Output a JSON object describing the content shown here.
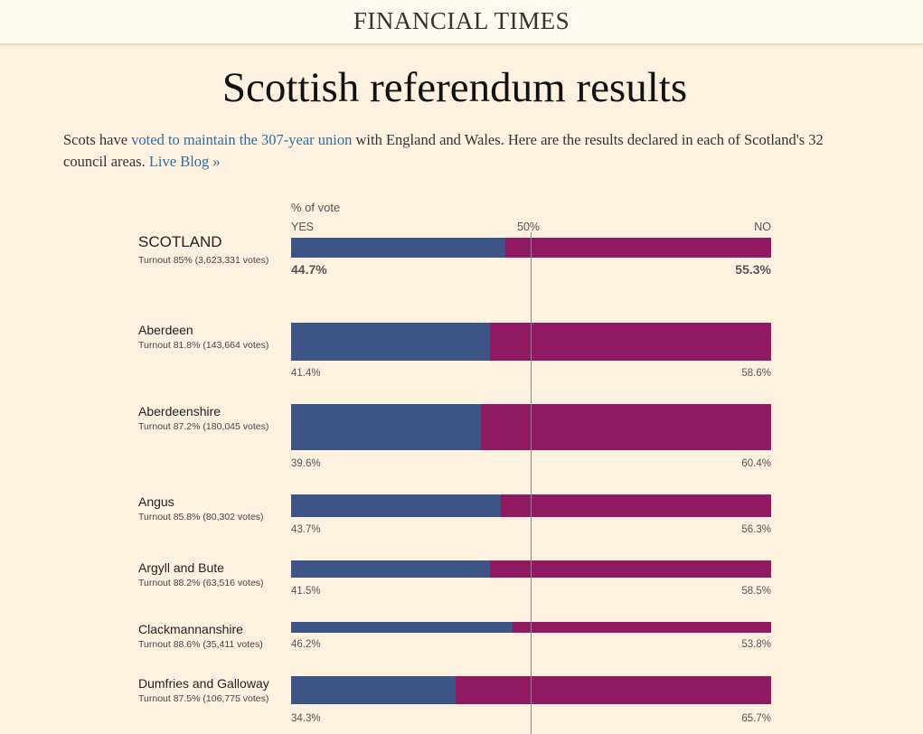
{
  "masthead": {
    "brand": "FINANCIAL TIMES"
  },
  "page": {
    "title": "Scottish referendum results"
  },
  "intro": {
    "text_1": "Scots have ",
    "link_1": "voted to maintain the 307-year union",
    "text_2": " with England and Wales. Here are the results declared in each of Scotland's 32 council areas. ",
    "link_2": "Live Blog »"
  },
  "colors": {
    "yes": "#3d5586",
    "no": "#8f1a62",
    "background": "#fff1e0",
    "link": "#2e6e9e"
  },
  "chart_data": {
    "type": "bar",
    "stacked": true,
    "orientation": "horizontal",
    "axis_label": "% of vote",
    "header_yes": "YES",
    "header_mid": "50%",
    "header_no": "NO",
    "xlim": [
      0,
      100
    ],
    "rows": [
      {
        "name": "SCOTLAND",
        "turnout": "Turnout 85% (3,623,331 votes)",
        "yes": 44.7,
        "no": 55.3,
        "yes_label": "44.7%",
        "no_label": "55.3%"
      },
      {
        "name": "Aberdeen",
        "turnout": "Turnout 81.8% (143,664 votes)",
        "yes": 41.4,
        "no": 58.6,
        "yes_label": "41.4%",
        "no_label": "58.6%"
      },
      {
        "name": "Aberdeenshire",
        "turnout": "Turnout 87.2% (180,045 votes)",
        "yes": 39.6,
        "no": 60.4,
        "yes_label": "39.6%",
        "no_label": "60.4%"
      },
      {
        "name": "Angus",
        "turnout": "Turnout 85.8% (80,302 votes)",
        "yes": 43.7,
        "no": 56.3,
        "yes_label": "43.7%",
        "no_label": "56.3%"
      },
      {
        "name": "Argyll and Bute",
        "turnout": "Turnout 88.2% (63,516 votes)",
        "yes": 41.5,
        "no": 58.5,
        "yes_label": "41.5%",
        "no_label": "58.5%"
      },
      {
        "name": "Clackmannanshire",
        "turnout": "Turnout 88.6% (35,411 votes)",
        "yes": 46.2,
        "no": 53.8,
        "yes_label": "46.2%",
        "no_label": "53.8%"
      },
      {
        "name": "Dumfries and Galloway",
        "turnout": "Turnout 87.5% (106,775 votes)",
        "yes": 34.3,
        "no": 65.7,
        "yes_label": "34.3%",
        "no_label": "65.7%"
      }
    ]
  }
}
